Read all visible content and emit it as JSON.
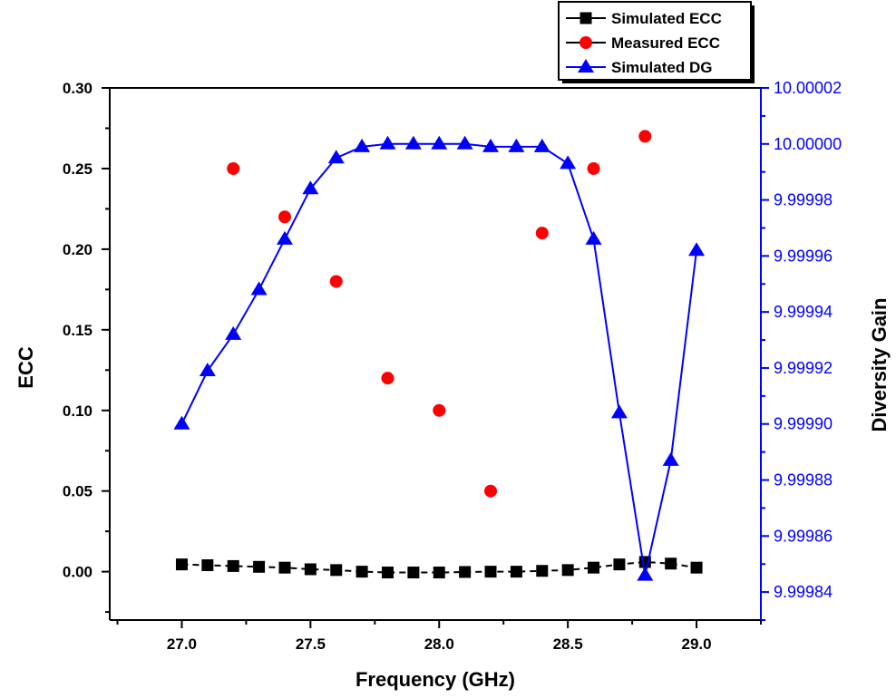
{
  "chart_data": {
    "type": "line",
    "xlabel": "Frequency (GHz)",
    "ylabel": "ECC",
    "y2label": "Diversity Gain",
    "xlim": [
      26.72,
      29.25
    ],
    "ylim": [
      -0.03,
      0.3
    ],
    "y2lim": [
      9.99983,
      10.00002
    ],
    "x_ticks": [
      27.0,
      27.5,
      28.0,
      28.5,
      29.0
    ],
    "x_tick_labels": [
      "27.0",
      "27.5",
      "28.0",
      "28.5",
      "29.0"
    ],
    "y_ticks": [
      0.0,
      0.05,
      0.1,
      0.15,
      0.2,
      0.25,
      0.3
    ],
    "y_tick_labels": [
      "0.00",
      "0.05",
      "0.10",
      "0.15",
      "0.20",
      "0.25",
      "0.30"
    ],
    "y2_ticks": [
      9.99984,
      9.99986,
      9.99988,
      9.9999,
      9.99992,
      9.99994,
      9.99996,
      9.99998,
      10.0,
      10.00002
    ],
    "y2_tick_labels": [
      "9.99984",
      "9.99986",
      "9.99988",
      "9.99990",
      "9.99992",
      "9.99994",
      "9.99996",
      "9.99998",
      "10.00000",
      "10.00002"
    ],
    "grid": false,
    "legend_position": "top-right",
    "series": [
      {
        "name": "Simulated ECC",
        "axis": "left",
        "color": "#000000",
        "marker": "square",
        "line": "dashed",
        "x": [
          27.0,
          27.1,
          27.2,
          27.3,
          27.4,
          27.5,
          27.6,
          27.7,
          27.8,
          27.9,
          28.0,
          28.1,
          28.2,
          28.3,
          28.4,
          28.5,
          28.6,
          28.7,
          28.8,
          28.9,
          29.0
        ],
        "y": [
          0.0045,
          0.004,
          0.0035,
          0.003,
          0.0025,
          0.0015,
          0.001,
          0.0,
          -0.0005,
          -0.0005,
          -0.0005,
          -0.0002,
          0.0,
          0.0,
          0.0005,
          0.001,
          0.0025,
          0.0045,
          0.006,
          0.005,
          0.0025
        ]
      },
      {
        "name": "Measured ECC",
        "axis": "left",
        "color": "#ff0000",
        "marker": "circle",
        "line": "none",
        "x": [
          27.2,
          27.4,
          27.6,
          27.8,
          28.0,
          28.2,
          28.4,
          28.6,
          28.8
        ],
        "y": [
          0.25,
          0.22,
          0.18,
          0.12,
          0.1,
          0.05,
          0.21,
          0.25,
          0.27
        ]
      },
      {
        "name": "Simulated DG",
        "axis": "right",
        "color": "#0000ff",
        "marker": "triangle",
        "line": "solid",
        "x": [
          27.0,
          27.1,
          27.2,
          27.3,
          27.4,
          27.5,
          27.6,
          27.7,
          27.8,
          27.9,
          28.0,
          28.1,
          28.2,
          28.3,
          28.4,
          28.5,
          28.6,
          28.7,
          28.8,
          28.9,
          29.0
        ],
        "y": [
          9.9999,
          9.999919,
          9.999932,
          9.999948,
          9.999966,
          9.999984,
          9.999995,
          9.999999,
          10.0,
          10.0,
          10.0,
          10.0,
          9.999999,
          9.999999,
          9.999999,
          9.999993,
          9.999966,
          9.999904,
          9.999846,
          9.999887,
          9.999962
        ]
      }
    ]
  }
}
